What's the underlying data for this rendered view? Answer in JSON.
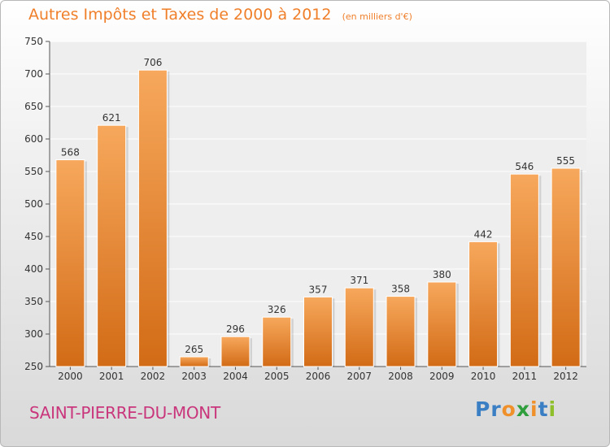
{
  "header": {
    "title": "Autres Impôts et Taxes de 2000 à 2012",
    "unit": "(en milliers d'€)"
  },
  "footer": {
    "commune": "SAINT-PIERRE-DU-MONT",
    "logo": "Proxiti"
  },
  "colors": {
    "bar_top": "#f7a85c",
    "bar_bottom": "#d26b16",
    "title": "#f07f2a",
    "commune": "#c9367c",
    "logo_letters": [
      "#3a7fc4",
      "#3a7fc4",
      "#f0902a",
      "#2f9e3c",
      "#f0902a",
      "#3a7fc4",
      "#8fbf2a"
    ]
  },
  "chart_data": {
    "type": "bar",
    "title": "Autres Impôts et Taxes de 2000 à 2012",
    "subtitle": "(en milliers d'€)",
    "xlabel": "",
    "ylabel": "",
    "categories": [
      "2000",
      "2001",
      "2002",
      "2003",
      "2004",
      "2005",
      "2006",
      "2007",
      "2008",
      "2009",
      "2010",
      "2011",
      "2012"
    ],
    "values": [
      568,
      621,
      706,
      265,
      296,
      326,
      357,
      371,
      358,
      380,
      442,
      546,
      555
    ],
    "ylim": [
      250,
      750
    ],
    "yticks": [
      250,
      300,
      350,
      400,
      450,
      500,
      550,
      600,
      650,
      700,
      750
    ],
    "grid": true,
    "legend": "none"
  }
}
